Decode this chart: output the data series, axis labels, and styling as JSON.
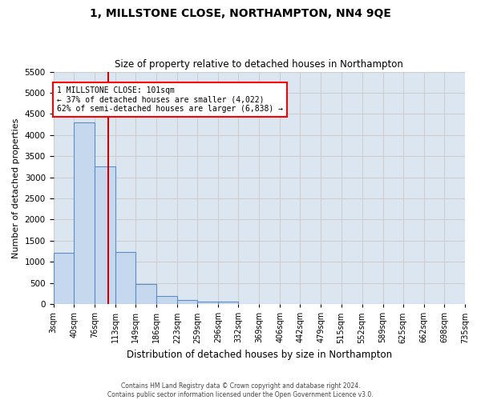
{
  "title": "1, MILLSTONE CLOSE, NORTHAMPTON, NN4 9QE",
  "subtitle": "Size of property relative to detached houses in Northampton",
  "xlabel": "Distribution of detached houses by size in Northampton",
  "ylabel": "Number of detached properties",
  "footer_line1": "Contains HM Land Registry data © Crown copyright and database right 2024.",
  "footer_line2": "Contains public sector information licensed under the Open Government Licence v3.0.",
  "property_label": "1 MILLSTONE CLOSE: 101sqm",
  "pct_smaller": "37% of detached houses are smaller (4,022)",
  "pct_larger": "62% of semi-detached houses are larger (6,838)",
  "bin_labels": [
    "3sqm",
    "40sqm",
    "76sqm",
    "113sqm",
    "149sqm",
    "186sqm",
    "223sqm",
    "259sqm",
    "296sqm",
    "332sqm",
    "369sqm",
    "406sqm",
    "442sqm",
    "479sqm",
    "515sqm",
    "552sqm",
    "589sqm",
    "625sqm",
    "662sqm",
    "698sqm",
    "735sqm"
  ],
  "bin_edges": [
    3,
    40,
    76,
    113,
    149,
    186,
    223,
    259,
    296,
    332,
    369,
    406,
    442,
    479,
    515,
    552,
    589,
    625,
    662,
    698,
    735
  ],
  "bar_heights": [
    1220,
    4300,
    3250,
    1230,
    480,
    200,
    90,
    60,
    60,
    0,
    0,
    0,
    0,
    0,
    0,
    0,
    0,
    0,
    0,
    0
  ],
  "bar_color": "#c5d8ed",
  "bar_edge_color": "#5b8dc8",
  "vline_x": 101,
  "vline_color": "#cc0000",
  "ylim": [
    0,
    5500
  ],
  "yticks": [
    0,
    500,
    1000,
    1500,
    2000,
    2500,
    3000,
    3500,
    4000,
    4500,
    5000,
    5500
  ],
  "grid_color": "#cccccc",
  "background_color": "#dce6f1"
}
